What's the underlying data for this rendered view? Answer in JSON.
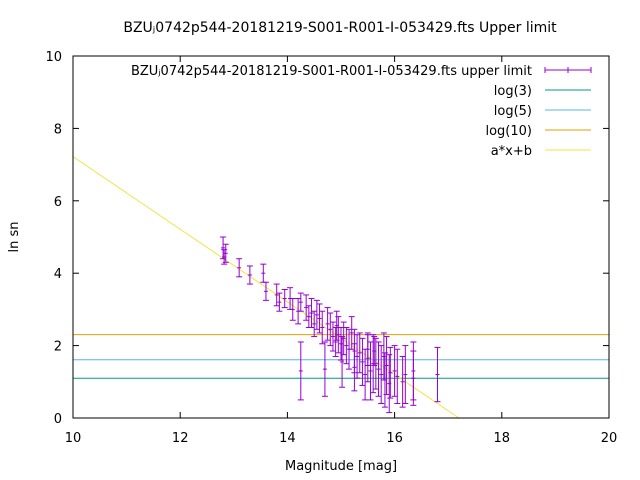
{
  "chart_data": {
    "type": "scatter",
    "title": "BZUⱼ0742p544-20181219-S001-R001-I-053429.fts Upper limit",
    "xlabel": "Magnitude [mag]",
    "ylabel": "ln sn",
    "xlim": [
      10,
      20
    ],
    "ylim": [
      0,
      10
    ],
    "x_ticks": [
      "10",
      "12",
      "14",
      "16",
      "18",
      "20"
    ],
    "y_ticks": [
      "0",
      "2",
      "4",
      "6",
      "8",
      "10"
    ],
    "grid": false,
    "legend_position": "top-right",
    "series": [
      {
        "name": "BZUⱼ0742p544-20181219-S001-R001-I-053429.fts upper limit",
        "kind": "errorbars",
        "color": "#9400d3",
        "points": [
          [
            12.8,
            4.7,
            0.3
          ],
          [
            12.85,
            4.55,
            0.25
          ],
          [
            12.82,
            4.45,
            0.2
          ],
          [
            13.1,
            4.15,
            0.25
          ],
          [
            13.3,
            3.95,
            0.25
          ],
          [
            13.55,
            4.0,
            0.25
          ],
          [
            13.6,
            3.5,
            0.25
          ],
          [
            13.8,
            3.4,
            0.3
          ],
          [
            13.85,
            3.2,
            0.25
          ],
          [
            13.95,
            3.3,
            0.25
          ],
          [
            14.05,
            3.3,
            0.3
          ],
          [
            14.1,
            3.0,
            0.3
          ],
          [
            14.2,
            2.95,
            0.35
          ],
          [
            14.25,
            3.2,
            0.25
          ],
          [
            14.25,
            1.3,
            0.8
          ],
          [
            14.35,
            3.05,
            0.35
          ],
          [
            14.4,
            2.8,
            0.3
          ],
          [
            14.45,
            2.9,
            0.4
          ],
          [
            14.5,
            2.6,
            0.35
          ],
          [
            14.55,
            2.85,
            0.4
          ],
          [
            14.6,
            2.75,
            0.4
          ],
          [
            14.65,
            2.5,
            0.45
          ],
          [
            14.7,
            1.35,
            0.75
          ],
          [
            14.75,
            2.6,
            0.45
          ],
          [
            14.8,
            2.45,
            0.45
          ],
          [
            14.85,
            2.25,
            0.4
          ],
          [
            14.9,
            2.1,
            0.4
          ],
          [
            14.92,
            2.55,
            0.4
          ],
          [
            14.95,
            2.3,
            0.5
          ],
          [
            15.0,
            2.05,
            0.45
          ],
          [
            15.02,
            1.55,
            0.7
          ],
          [
            15.05,
            2.2,
            0.45
          ],
          [
            15.1,
            2.0,
            0.5
          ],
          [
            15.15,
            1.9,
            0.55
          ],
          [
            15.2,
            2.35,
            0.45
          ],
          [
            15.25,
            1.85,
            0.6
          ],
          [
            15.25,
            1.4,
            0.65
          ],
          [
            15.3,
            1.7,
            0.6
          ],
          [
            15.35,
            1.8,
            0.55
          ],
          [
            15.4,
            1.55,
            0.65
          ],
          [
            15.45,
            1.2,
            0.7
          ],
          [
            15.5,
            1.65,
            0.65
          ],
          [
            15.5,
            1.9,
            0.45
          ],
          [
            15.55,
            1.3,
            0.8
          ],
          [
            15.6,
            1.5,
            0.8
          ],
          [
            15.62,
            1.85,
            0.4
          ],
          [
            15.65,
            1.5,
            0.7
          ],
          [
            15.7,
            1.35,
            0.75
          ],
          [
            15.75,
            1.2,
            0.8
          ],
          [
            15.8,
            1.7,
            0.65
          ],
          [
            15.82,
            1.05,
            0.75
          ],
          [
            15.85,
            1.45,
            0.8
          ],
          [
            15.9,
            0.95,
            0.8
          ],
          [
            15.92,
            1.25,
            0.7
          ],
          [
            16.0,
            1.3,
            0.7
          ],
          [
            16.05,
            1.15,
            0.75
          ],
          [
            16.15,
            1.0,
            0.7
          ],
          [
            16.2,
            1.2,
            0.8
          ],
          [
            16.35,
            1.1,
            0.75
          ],
          [
            16.35,
            1.3,
            0.8
          ],
          [
            16.8,
            1.2,
            0.75
          ]
        ]
      },
      {
        "name": "log(3)",
        "kind": "hline",
        "color": "#009e73",
        "y": 1.0986
      },
      {
        "name": "log(5)",
        "kind": "hline",
        "color": "#56b4e9",
        "y": 1.6094
      },
      {
        "name": "log(10)",
        "kind": "hline",
        "color": "#e69f00",
        "y": 2.3026
      },
      {
        "name": "a*x+b",
        "kind": "line",
        "color": "#f0e442",
        "x": [
          10,
          17.2
        ],
        "y": [
          7.22,
          0
        ]
      }
    ]
  }
}
